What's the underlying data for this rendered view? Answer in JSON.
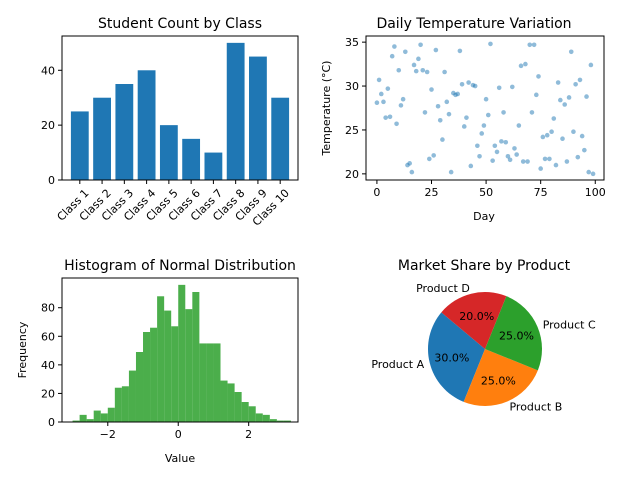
{
  "chart_data": [
    {
      "type": "bar",
      "title": "Student Count by Class",
      "xlabel": "",
      "ylabel": "",
      "categories": [
        "Class 1",
        "Class 2",
        "Class 3",
        "Class 4",
        "Class 5",
        "Class 6",
        "Class 7",
        "Class 8",
        "Class 9",
        "Class 10"
      ],
      "values": [
        25,
        30,
        35,
        40,
        20,
        15,
        10,
        50,
        45,
        30
      ],
      "ylim": [
        0,
        52.5
      ],
      "yticks": [
        0,
        20,
        40
      ],
      "color": "#1f77b4",
      "grid": false
    },
    {
      "type": "scatter",
      "title": "Daily Temperature Variation",
      "xlabel": "Day",
      "ylabel": "Temperature (°C)",
      "xlim": [
        -5,
        104
      ],
      "ylim": [
        19.3,
        35.7
      ],
      "xticks": [
        0,
        25,
        50,
        75,
        100
      ],
      "yticks": [
        20,
        25,
        30,
        35
      ],
      "color": "#1f77b4",
      "alpha": 0.5,
      "grid": false,
      "x": [
        0,
        1,
        2,
        3,
        4,
        5,
        6,
        7,
        8,
        9,
        10,
        11,
        12,
        13,
        14,
        15,
        16,
        17,
        18,
        19,
        20,
        21,
        22,
        23,
        24,
        25,
        26,
        27,
        28,
        29,
        30,
        31,
        32,
        33,
        34,
        35,
        36,
        37,
        38,
        39,
        40,
        41,
        42,
        43,
        44,
        45,
        46,
        47,
        48,
        49,
        50,
        51,
        52,
        53,
        54,
        55,
        56,
        57,
        58,
        59,
        60,
        61,
        62,
        63,
        64,
        65,
        66,
        67,
        68,
        69,
        70,
        71,
        72,
        73,
        74,
        75,
        76,
        77,
        78,
        79,
        80,
        81,
        82,
        83,
        84,
        85,
        86,
        87,
        88,
        89,
        90,
        91,
        92,
        93,
        94,
        95,
        96,
        97,
        98,
        99
      ],
      "y": [
        28.1,
        30.7,
        29.1,
        28.2,
        26.4,
        29.7,
        26.5,
        33.4,
        34.5,
        25.7,
        31.8,
        27.8,
        28.5,
        33.9,
        21.0,
        21.2,
        20.2,
        32.4,
        31.7,
        33.1,
        34.7,
        31.8,
        27.0,
        31.6,
        21.7,
        29.6,
        22.1,
        34.1,
        27.7,
        26.1,
        23.9,
        31.6,
        28.2,
        26.8,
        20.2,
        29.2,
        29.0,
        29.1,
        34.0,
        30.2,
        25.4,
        26.4,
        30.4,
        20.9,
        30.1,
        30.0,
        23.2,
        22.0,
        24.6,
        25.5,
        28.5,
        26.7,
        34.8,
        21.5,
        23.2,
        22.5,
        29.8,
        23.7,
        27.0,
        23.6,
        22.0,
        21.6,
        29.9,
        22.9,
        22.2,
        25.5,
        32.3,
        21.4,
        32.5,
        21.4,
        34.7,
        27.0,
        34.7,
        29.0,
        31.1,
        20.6,
        24.2,
        21.7,
        24.4,
        21.7,
        24.8,
        26.3,
        21.0,
        30.4,
        28.4,
        24.0,
        27.9,
        21.4,
        28.7,
        33.9,
        24.8,
        30.2,
        21.9,
        30.7,
        24.3,
        22.7,
        28.8,
        20.2,
        32.4,
        20.0
      ]
    },
    {
      "type": "bar",
      "subtype": "histogram",
      "title": "Histogram of Normal Distribution",
      "xlabel": "Value",
      "ylabel": "Frequency",
      "bin_start": -3.0,
      "bin_width": 0.2,
      "counts": [
        1,
        5,
        2,
        8,
        6,
        10,
        24,
        25,
        36,
        49,
        63,
        66,
        88,
        78,
        67,
        96,
        79,
        91,
        55,
        55,
        55,
        29,
        27,
        21,
        14,
        11,
        6,
        5,
        2,
        1,
        1
      ],
      "xlim": [
        -3.3,
        3.4
      ],
      "ylim": [
        0,
        100.8
      ],
      "xticks": [
        -2,
        0,
        2
      ],
      "yticks": [
        0,
        20,
        40,
        60,
        80
      ],
      "color": "#2ca02c",
      "alpha": 0.85,
      "grid": false
    },
    {
      "type": "pie",
      "title": "Market Share by Product",
      "categories": [
        "Product A",
        "Product B",
        "Product C",
        "Product D"
      ],
      "values": [
        30,
        25,
        25,
        20
      ],
      "labels_pct": [
        "30.0%",
        "25.0%",
        "25.0%",
        "20.0%"
      ],
      "colors": [
        "#1f77b4",
        "#ff7f0e",
        "#2ca02c",
        "#d62728"
      ],
      "start_angle_deg": 140,
      "direction": "counterclockwise"
    }
  ]
}
